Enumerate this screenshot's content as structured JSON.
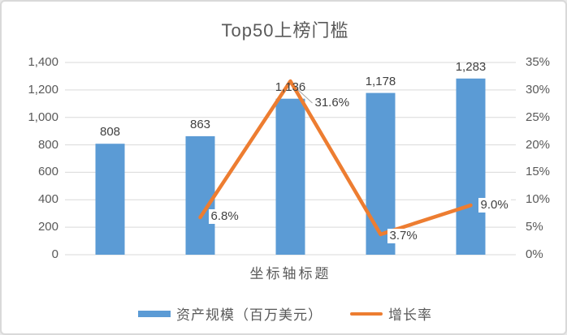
{
  "chart_data": {
    "type": "bar",
    "subtype": "combo bar + line, dual axis",
    "title": "Top50上榜门槛",
    "xlabel": "坐标轴标题",
    "ylabel": "",
    "categories": [
      "",
      "",
      "",
      "",
      ""
    ],
    "series": [
      {
        "name": "资产规模（百万美元）",
        "type": "bar",
        "axis": "left",
        "color": "#5B9BD5",
        "values": [
          808,
          863,
          1136,
          1178,
          1283
        ],
        "labels": [
          "808",
          "863",
          "1,136",
          "1,178",
          "1,283"
        ]
      },
      {
        "name": "增长率",
        "type": "line",
        "axis": "right",
        "color": "#ED7D31",
        "values": [
          null,
          6.8,
          31.6,
          3.7,
          9.0
        ],
        "labels": [
          "",
          "6.8%",
          "31.6%",
          "3.7%",
          "9.0%"
        ]
      }
    ],
    "left_axis": {
      "ticks": [
        "1,400",
        "1,200",
        "1,000",
        "800",
        "600",
        "400",
        "200",
        "0"
      ],
      "min": 0,
      "max": 1400
    },
    "right_axis": {
      "ticks": [
        "35%",
        "30%",
        "25%",
        "20%",
        "15%",
        "10%",
        "5%",
        "0%"
      ],
      "min": 0,
      "max": 35
    },
    "grid": true,
    "legend_position": "bottom",
    "gridline_color": "#D9D9D9",
    "text_color": "#595959",
    "label_color": "#404040",
    "leader_line_color": "#A6A6A6"
  }
}
